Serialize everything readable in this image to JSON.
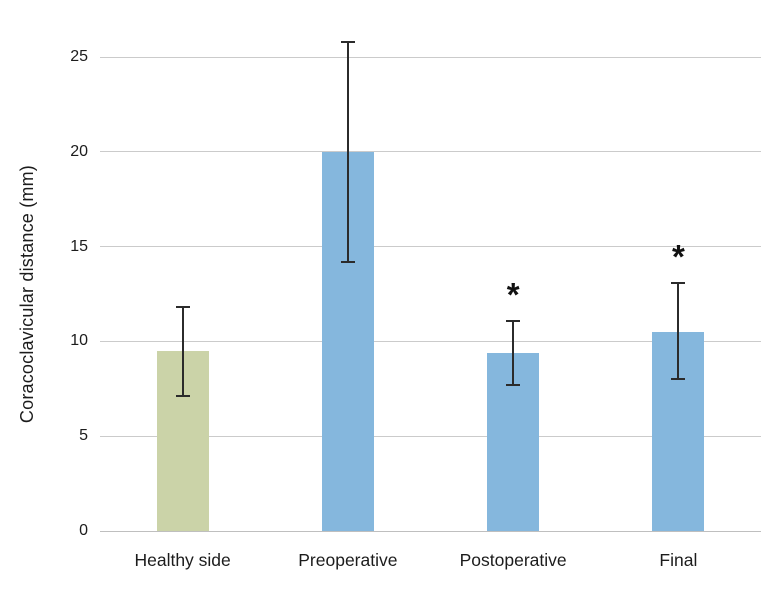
{
  "figure": {
    "background": "#ffffff"
  },
  "chart_data": {
    "type": "bar",
    "title": "",
    "ylabel": "Coracoclavicular distance (mm)",
    "xlabel": "",
    "categories": [
      "Healthy side",
      "Preoperative",
      "Postoperative",
      "Final"
    ],
    "values": [
      9.5,
      20.0,
      9.4,
      10.5
    ],
    "error_low": [
      7.1,
      14.2,
      7.7,
      8.0
    ],
    "error_high": [
      11.8,
      25.8,
      11.1,
      13.1
    ],
    "significance": [
      "",
      "",
      "*",
      "*"
    ],
    "bar_colors": [
      "#cbd3a8",
      "#85b7dd",
      "#85b7dd",
      "#85b7dd"
    ],
    "ylim": [
      0,
      25
    ],
    "yticks": [
      0,
      5,
      10,
      15,
      20,
      25
    ],
    "grid": "horizontal-only",
    "legend": "none",
    "colors": {
      "healthy_bar": "#cbd3a8",
      "operative_bar": "#85b7dd",
      "gridline": "#cbcbcb",
      "baseline": "#bfbfbf",
      "error_bar": "#2b2b2b",
      "text": "#1c1c1c",
      "background": "#ffffff"
    }
  }
}
